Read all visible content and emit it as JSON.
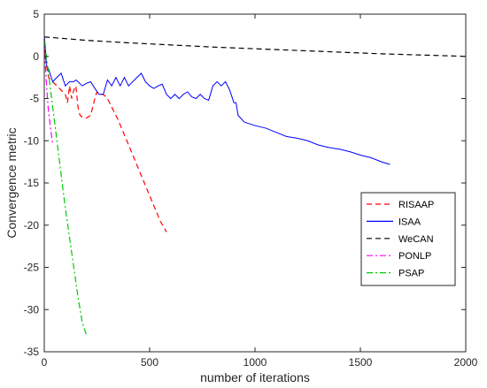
{
  "chart_data": {
    "type": "line",
    "title": "",
    "xlabel": "number of iterations",
    "ylabel": "Convergence metric",
    "xlim": [
      0,
      2000
    ],
    "ylim": [
      -35,
      5
    ],
    "xticks": [
      0,
      500,
      1000,
      1500,
      2000
    ],
    "yticks": [
      5,
      0,
      -5,
      -10,
      -15,
      -20,
      -25,
      -30,
      -35
    ],
    "grid": false,
    "legend_position": "right",
    "series": [
      {
        "name": "RISAAP",
        "color": "#ff0000",
        "dash": "dashed",
        "x": [
          0,
          10,
          20,
          40,
          60,
          80,
          100,
          110,
          120,
          130,
          140,
          150,
          160,
          170,
          180,
          200,
          220,
          240,
          250,
          260,
          280,
          300,
          350,
          400,
          450,
          500,
          550,
          580
        ],
        "y": [
          2,
          -1,
          -2.5,
          -3,
          -3.5,
          -4,
          -4.5,
          -5.5,
          -3.5,
          -5,
          -4,
          -3.5,
          -6,
          -7,
          -7.2,
          -7.3,
          -7,
          -5,
          -4.2,
          -4.5,
          -4.5,
          -5,
          -7.5,
          -10.5,
          -13.5,
          -16.5,
          -19.5,
          -20.8
        ]
      },
      {
        "name": "ISAA",
        "color": "#0000ff",
        "dash": "solid",
        "x": [
          0,
          5,
          10,
          20,
          40,
          60,
          80,
          100,
          120,
          140,
          150,
          160,
          180,
          200,
          220,
          240,
          260,
          280,
          300,
          320,
          340,
          360,
          380,
          400,
          420,
          440,
          460,
          480,
          500,
          520,
          540,
          560,
          580,
          600,
          620,
          640,
          660,
          680,
          700,
          720,
          740,
          760,
          780,
          800,
          820,
          840,
          860,
          880,
          900,
          910,
          920,
          950,
          1000,
          1050,
          1100,
          1150,
          1200,
          1250,
          1300,
          1350,
          1400,
          1450,
          1500,
          1550,
          1600,
          1640
        ],
        "y": [
          2.5,
          1,
          -1,
          -1.5,
          -3,
          -2.5,
          -2,
          -3.5,
          -3,
          -3,
          -2.8,
          -3,
          -3.5,
          -3.2,
          -3,
          -3.8,
          -4.5,
          -4.5,
          -2.8,
          -3.5,
          -2.5,
          -3.5,
          -2.5,
          -3.5,
          -3,
          -2.5,
          -2,
          -3,
          -3.5,
          -3.8,
          -3.5,
          -3.3,
          -4.5,
          -5,
          -4.5,
          -5,
          -4.5,
          -4.2,
          -4.8,
          -5,
          -4.5,
          -5,
          -5.2,
          -3.5,
          -3,
          -3.5,
          -3,
          -4,
          -5.5,
          -5.5,
          -7,
          -7.8,
          -8.2,
          -8.5,
          -9,
          -9.5,
          -9.7,
          -10,
          -10.5,
          -10.8,
          -11,
          -11.3,
          -11.7,
          -12,
          -12.5,
          -12.8
        ]
      },
      {
        "name": "WeCAN",
        "color": "#000000",
        "dash": "dashed",
        "x": [
          0,
          100,
          200,
          400,
          600,
          800,
          1000,
          1200,
          1400,
          1600,
          1800,
          2000
        ],
        "y": [
          2.3,
          2.1,
          1.9,
          1.6,
          1.35,
          1.1,
          0.9,
          0.7,
          0.5,
          0.3,
          0.15,
          0.0
        ]
      },
      {
        "name": "PONLP",
        "color": "#ff00ff",
        "dash": "dashdot",
        "x": [
          0,
          5,
          10,
          15,
          20,
          25,
          30,
          35,
          40
        ],
        "y": [
          2,
          -1,
          -3,
          -5,
          -6.5,
          -7.5,
          -8.5,
          -9.5,
          -10.5
        ]
      },
      {
        "name": "PSAP",
        "color": "#00cc00",
        "dash": "dashdot",
        "x": [
          0,
          10,
          20,
          40,
          60,
          80,
          100,
          120,
          140,
          160,
          180,
          200
        ],
        "y": [
          2,
          0,
          -2,
          -6,
          -10,
          -14,
          -18,
          -21.5,
          -25,
          -28.5,
          -31.5,
          -33
        ]
      }
    ]
  }
}
